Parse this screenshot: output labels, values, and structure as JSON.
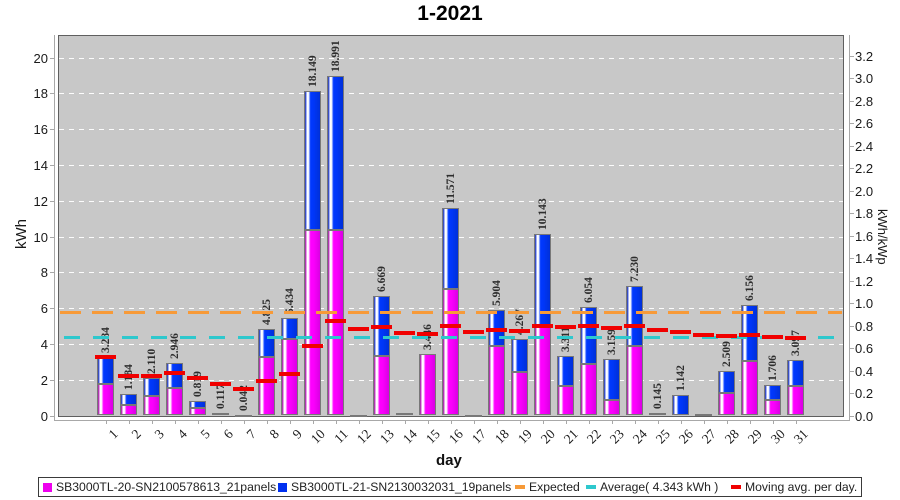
{
  "title": "1-2021",
  "axes": {
    "left_label": "kWh",
    "right_label": "kWh/kWp",
    "x_label": "day",
    "left_ticks": [
      0,
      2,
      4,
      6,
      8,
      10,
      12,
      14,
      16,
      18,
      20
    ],
    "right_ticks": [
      "0.0",
      "0.2",
      "0.4",
      "0.6",
      "0.8",
      "1.0",
      "1.2",
      "1.4",
      "1.6",
      "1.8",
      "2.0",
      "2.2",
      "2.4",
      "2.6",
      "2.8",
      "3.0",
      "3.2"
    ]
  },
  "chart_data": {
    "type": "bar",
    "stacked": true,
    "title": "1-2021",
    "xlabel": "day",
    "ylabel": "kWh",
    "ylabel_right": "kWh/kWp",
    "ylim": [
      0,
      21.26
    ],
    "ylim_right": [
      0,
      3.2
    ],
    "grid": "horizontal-white-dashed",
    "legend_position": "bottom",
    "categories": [
      1,
      2,
      3,
      4,
      5,
      6,
      7,
      8,
      9,
      10,
      11,
      12,
      13,
      14,
      15,
      16,
      17,
      18,
      19,
      20,
      21,
      22,
      23,
      24,
      25,
      26,
      27,
      28,
      29,
      30,
      31
    ],
    "series": [
      {
        "name": "SB3000TL-20-SN2100578613_21panels",
        "color": "#ff00ff",
        "values": [
          1.74,
          0.61,
          1.08,
          1.53,
          0.42,
          0.065,
          0.022,
          3.28,
          4.25,
          10.36,
          10.36,
          0.015,
          3.32,
          0.12,
          3.446,
          7.06,
          0.015,
          3.9,
          2.45,
          5.02,
          1.64,
          2.89,
          0.85,
          3.88,
          0.145,
          0.0,
          0.058,
          1.24,
          3.06,
          0.86,
          1.64
        ]
      },
      {
        "name": "SB3000TL-21-SN2130032031_19panels",
        "color": "#0038fa",
        "values": [
          1.544,
          0.574,
          1.03,
          1.416,
          0.399,
          0.052,
          0.02,
          1.545,
          1.184,
          7.789,
          8.631,
          0.015,
          3.349,
          0.0,
          0.0,
          4.511,
          0.0,
          2.004,
          1.817,
          5.123,
          1.671,
          3.164,
          2.309,
          3.35,
          0.0,
          1.142,
          0.0,
          1.269,
          3.096,
          0.846,
          1.457
        ]
      }
    ],
    "totals": [
      3.284,
      1.184,
      2.11,
      2.946,
      0.819,
      0.117,
      0.042,
      4.825,
      5.434,
      18.149,
      18.991,
      0.03,
      6.669,
      0.12,
      3.446,
      11.571,
      0.015,
      5.904,
      4.267,
      10.143,
      3.311,
      6.054,
      3.159,
      7.23,
      0.145,
      1.142,
      0.058,
      2.509,
      6.156,
      1.706,
      3.097
    ],
    "bar_labels": [
      "3.284",
      "1.184",
      "2.110",
      "2.946",
      "0.819",
      "0.117",
      "0.042",
      "4.825",
      "5.434",
      "18.149",
      "18.991",
      null,
      "6.669",
      null,
      "3.446",
      "11.571",
      null,
      "5.904",
      "4.267",
      "10.143",
      "3.311",
      "6.054",
      "3.159",
      "7.230",
      "0.145",
      "1.142",
      null,
      "2.509",
      "6.156",
      "1.706",
      "3.097"
    ],
    "expected_line": {
      "label": "Expected",
      "value": 5.77,
      "color": "#f79a38"
    },
    "average_line": {
      "label": "Average( 4.343 kWh )",
      "value": 4.343,
      "color": "#2ec8cd"
    },
    "moving_avg_line": {
      "label": "Moving avg. per day.",
      "color": "#f00000",
      "values": [
        3.284,
        2.234,
        2.193,
        2.381,
        2.069,
        1.743,
        1.5,
        1.916,
        2.307,
        3.891,
        5.264,
        4.828,
        4.969,
        4.623,
        4.544,
        4.984,
        4.691,
        4.759,
        4.733,
        5.003,
        4.923,
        4.974,
        4.895,
        4.993,
        4.799,
        4.658,
        4.488,
        4.417,
        4.477,
        4.385,
        4.343
      ]
    }
  },
  "legend": {
    "items": [
      {
        "swatch": "square",
        "color": "#ee00ee",
        "label": "SB3000TL-20-SN2100578613_21panels"
      },
      {
        "swatch": "square",
        "color": "#0030f0",
        "label": "SB3000TL-21-SN2130032031_19panels"
      },
      {
        "swatch": "line",
        "color": "#f79a38",
        "label": "Expected"
      },
      {
        "swatch": "line",
        "color": "#2ec8cd",
        "label": "Average( 4.343 kWh )"
      },
      {
        "swatch": "line",
        "color": "#f00000",
        "label": "Moving avg. per day."
      }
    ]
  },
  "colors": {
    "plot_bg": "#c8c8c8",
    "plot_border": "#5f5f5f",
    "grid": "#ffffff",
    "axis": "#a8a8a8",
    "bar_border": "#787878",
    "magenta_body": "#ff00ff",
    "blue_body": "#0038fa",
    "expected": "#f79a38",
    "average": "#2ec8cd",
    "moving_avg": "#f00000"
  }
}
